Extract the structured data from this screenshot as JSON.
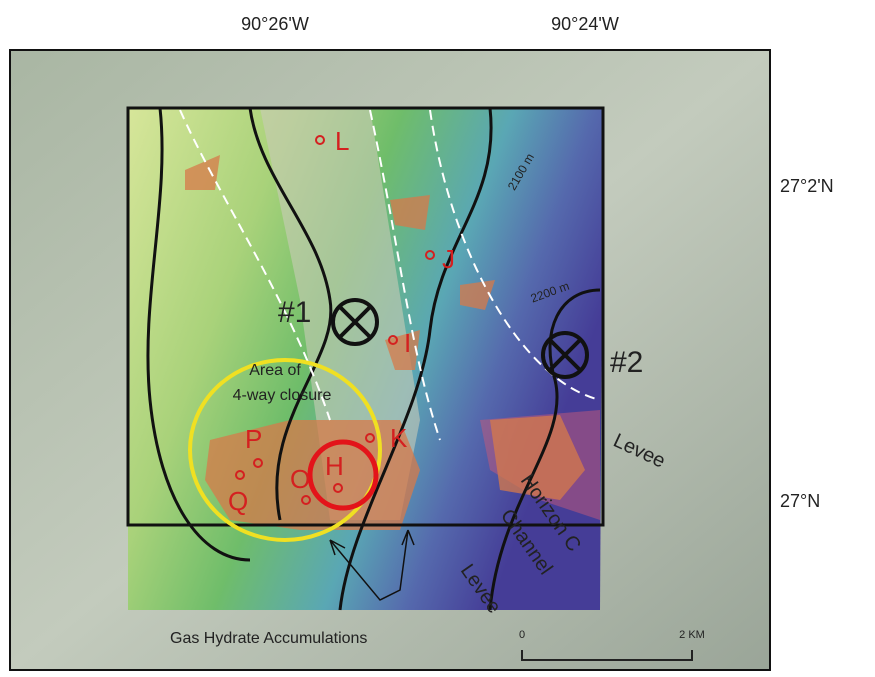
{
  "axes": {
    "longitudes": [
      "90°26'W",
      "90°24'W"
    ],
    "latitudes": [
      "27°2'N",
      "27°N"
    ]
  },
  "contours": [
    "2100 m",
    "2200 m"
  ],
  "wells": [
    "#1",
    "#2"
  ],
  "closure": {
    "line1": "Area of",
    "line2": "4-way closure"
  },
  "sites": [
    "L",
    "J",
    "I",
    "K",
    "P",
    "Q",
    "O",
    "H"
  ],
  "features": {
    "levee_upper": "Levee",
    "levee_lower": "Levee",
    "channel_line1": "Horizon C",
    "channel_line2": "Channel"
  },
  "legend": "Gas Hydrate Accumulations",
  "scale": {
    "start": "0",
    "end": "2 KM"
  }
}
